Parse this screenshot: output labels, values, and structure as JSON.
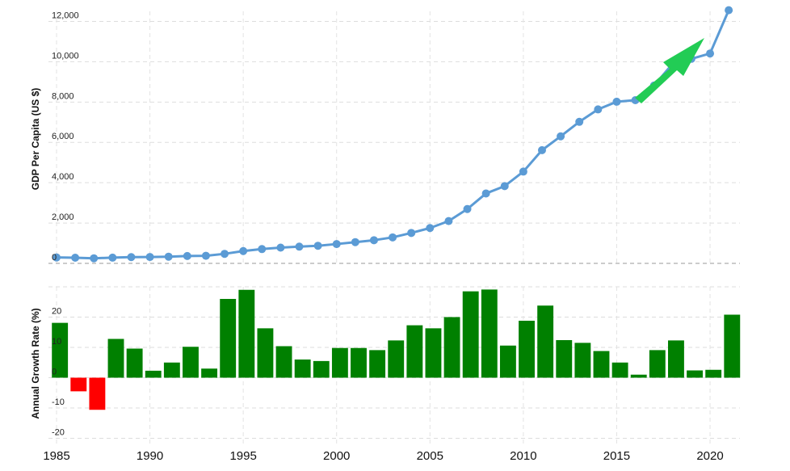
{
  "chart_data": [
    {
      "type": "line",
      "ylabel": "GDP Per Capita (US $)",
      "ylim": [
        0,
        12500
      ],
      "yticks": [
        0,
        2000,
        4000,
        6000,
        8000,
        10000,
        12000
      ],
      "ytick_labels": [
        "0",
        "2,000",
        "4,000",
        "6,000",
        "8,000",
        "10,000",
        "12,000"
      ],
      "grid": true,
      "colors": {
        "line": "#5b9bd5",
        "marker": "#5b9bd5",
        "grid": "#dddddd",
        "arrow": "#22cc55"
      },
      "x": [
        1985,
        1986,
        1987,
        1988,
        1989,
        1990,
        1991,
        1992,
        1993,
        1994,
        1995,
        1996,
        1997,
        1998,
        1999,
        2000,
        2001,
        2002,
        2003,
        2004,
        2005,
        2006,
        2007,
        2008,
        2009,
        2010,
        2011,
        2012,
        2013,
        2014,
        2015,
        2016,
        2017,
        2018,
        2019,
        2020,
        2021
      ],
      "values": [
        294,
        281,
        252,
        284,
        311,
        318,
        333,
        366,
        377,
        473,
        610,
        709,
        782,
        829,
        873,
        959,
        1053,
        1149,
        1289,
        1509,
        1753,
        2099,
        2694,
        3468,
        3832,
        4550,
        5614,
        6301,
        7020,
        7636,
        8016,
        8094,
        8817,
        9905,
        10144,
        10409,
        12556
      ]
    },
    {
      "type": "bar",
      "ylabel": "Annual Growth Rate (%)",
      "ylim": [
        -22,
        30
      ],
      "yticks": [
        -20,
        -10,
        0,
        10,
        20
      ],
      "ytick_labels": [
        "-20",
        "-10",
        "0",
        "10",
        "20"
      ],
      "grid": true,
      "colors": {
        "positive": "#008000",
        "negative": "#ff0000",
        "grid": "#dddddd"
      },
      "x": [
        1985,
        1986,
        1987,
        1988,
        1989,
        1990,
        1991,
        1992,
        1993,
        1994,
        1995,
        1996,
        1997,
        1998,
        1999,
        2000,
        2001,
        2002,
        2003,
        2004,
        2005,
        2006,
        2007,
        2008,
        2009,
        2010,
        2011,
        2012,
        2013,
        2014,
        2015,
        2016,
        2017,
        2018,
        2019,
        2020,
        2021
      ],
      "values": [
        18.1,
        -4.5,
        -10.6,
        12.8,
        9.6,
        2.3,
        5.0,
        10.2,
        3.0,
        26.0,
        29.0,
        16.3,
        10.4,
        6.0,
        5.5,
        9.8,
        9.8,
        9.1,
        12.3,
        17.3,
        16.3,
        20.0,
        28.5,
        29.1,
        10.6,
        18.8,
        23.8,
        12.4,
        11.5,
        8.8,
        5.0,
        1.0,
        9.1,
        12.3,
        2.4,
        2.6,
        20.8
      ]
    }
  ],
  "x_axis": {
    "ticks": [
      1985,
      1990,
      1995,
      2000,
      2005,
      2010,
      2015,
      2020
    ],
    "tick_labels": [
      "1985",
      "1990",
      "1995",
      "2000",
      "2005",
      "2010",
      "2015",
      "2020"
    ],
    "range": [
      1985,
      2021.6
    ]
  }
}
